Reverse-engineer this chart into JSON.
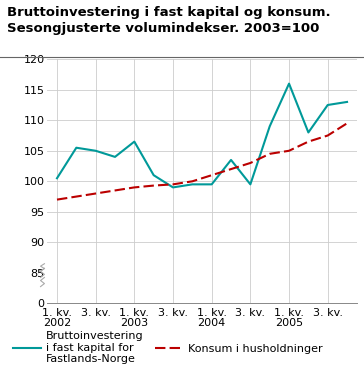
{
  "title_line1": "Bruttoinvestering i fast kapital og konsum.",
  "title_line2": "Sesongjusterte volumindekser. 2003=100",
  "x_labels": [
    "1. kv.\n2002",
    "3. kv.",
    "1. kv.\n2003",
    "3. kv.",
    "1. kv.\n2004",
    "3. kv.",
    "1. kv.\n2005",
    "3. kv."
  ],
  "x_positions": [
    0,
    2,
    4,
    6,
    8,
    10,
    12,
    14
  ],
  "investment_x": [
    0,
    1,
    2,
    3,
    4,
    5,
    6,
    7,
    8,
    9,
    10,
    11,
    12,
    13,
    14,
    15
  ],
  "investment_y": [
    100.5,
    105.5,
    105.0,
    104.0,
    106.5,
    101.0,
    99.0,
    99.5,
    99.5,
    103.5,
    99.5,
    109.0,
    116.0,
    108.0,
    112.5,
    113.0
  ],
  "konsum_x": [
    0,
    1,
    2,
    3,
    4,
    5,
    6,
    7,
    8,
    9,
    10,
    11,
    12,
    13,
    14,
    15
  ],
  "konsum_y": [
    97.0,
    97.5,
    98.0,
    98.5,
    99.0,
    99.3,
    99.5,
    100.0,
    101.0,
    102.0,
    103.0,
    104.5,
    105.0,
    106.5,
    107.5,
    109.5
  ],
  "investment_color": "#009999",
  "konsum_color": "#BB0000",
  "legend_investment": "Bruttoinvestering\ni fast kapital for\nFastlands-Norge",
  "legend_konsum": "Konsum i husholdninger",
  "bg_color": "#ffffff",
  "grid_color": "#cccccc",
  "title_fontsize": 9.5,
  "tick_fontsize": 8.0,
  "legend_fontsize": 8.0,
  "upper_ylim": [
    85,
    120
  ],
  "upper_yticks": [
    85,
    90,
    95,
    100,
    105,
    110,
    115,
    120
  ],
  "lower_ytick_label": "0",
  "xlim": [
    -0.5,
    15.5
  ]
}
